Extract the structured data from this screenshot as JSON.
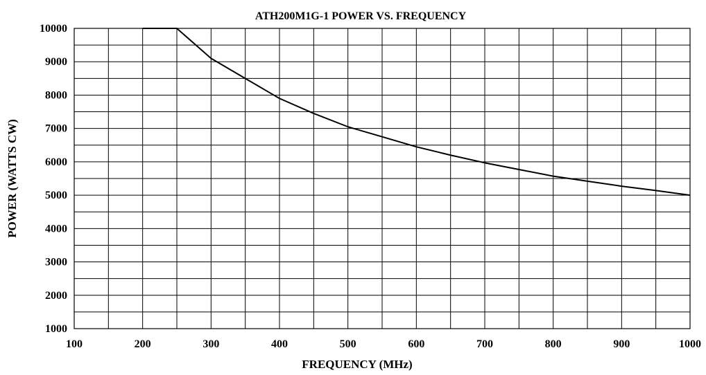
{
  "chart_data": {
    "type": "line",
    "title": "ATH200M1G-1 POWER VS. FREQUENCY",
    "xlabel": "FREQUENCY (MHz)",
    "ylabel": "POWER (WATTS CW)",
    "xlim": [
      100,
      1000
    ],
    "ylim": [
      1000,
      10000
    ],
    "x_ticks": [
      100,
      200,
      300,
      400,
      500,
      600,
      700,
      800,
      900,
      1000
    ],
    "y_ticks": [
      1000,
      2000,
      3000,
      4000,
      5000,
      6000,
      7000,
      8000,
      9000,
      10000
    ],
    "x_grid_step": 50,
    "y_grid_step": 500,
    "grid": true,
    "series": [
      {
        "x": [
          200,
          250,
          300,
          350,
          400,
          450,
          500,
          550,
          600,
          650,
          700,
          750,
          800,
          850,
          900,
          950,
          1000
        ],
        "y": [
          10000,
          10000,
          9100,
          8500,
          7900,
          7450,
          7050,
          6750,
          6450,
          6200,
          5970,
          5770,
          5570,
          5420,
          5270,
          5140,
          5000
        ]
      }
    ]
  }
}
